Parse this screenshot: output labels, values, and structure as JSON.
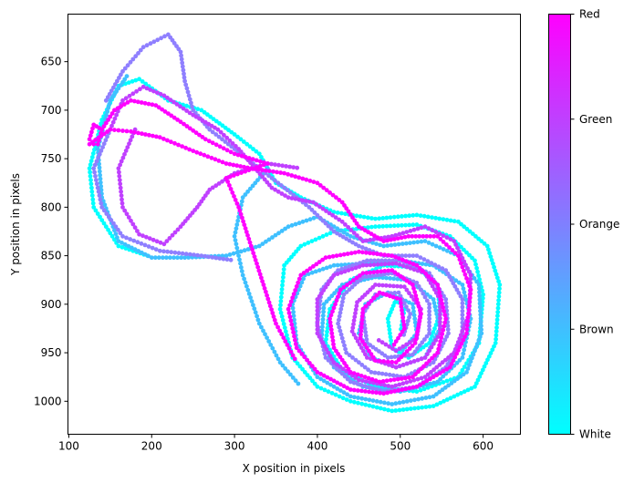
{
  "chart_data": {
    "type": "scatter",
    "title": "",
    "xlabel": "X position in pixels",
    "ylabel": "Y position in pixels",
    "xlim": [
      99,
      645
    ],
    "ylim": [
      1034,
      601
    ],
    "y_inverted": true,
    "grid": false,
    "xticks": [
      100,
      200,
      300,
      400,
      500,
      600
    ],
    "yticks": [
      650,
      700,
      750,
      800,
      850,
      900,
      950,
      1000
    ],
    "colormap": "cool",
    "colorbar": {
      "position": "right",
      "ticks": [
        "White",
        "Brown",
        "Orange",
        "Green",
        "Red"
      ],
      "colors": {
        "low": "#00ffff",
        "high": "#ff00ff"
      }
    },
    "series": [
      {
        "name": "White",
        "color": "#00ffff",
        "points": [
          [
            195,
            850
          ],
          [
            160,
            840
          ],
          [
            130,
            800
          ],
          [
            125,
            760
          ],
          [
            140,
            710
          ],
          [
            160,
            675
          ],
          [
            185,
            668
          ],
          [
            220,
            690
          ],
          [
            260,
            700
          ],
          [
            300,
            725
          ],
          [
            330,
            745
          ],
          [
            350,
            775
          ],
          [
            380,
            790
          ],
          [
            420,
            805
          ],
          [
            470,
            812
          ],
          [
            520,
            808
          ],
          [
            570,
            815
          ],
          [
            605,
            840
          ],
          [
            620,
            880
          ],
          [
            615,
            940
          ],
          [
            590,
            985
          ],
          [
            540,
            1005
          ],
          [
            490,
            1010
          ],
          [
            440,
            1000
          ],
          [
            400,
            985
          ],
          [
            370,
            955
          ],
          [
            355,
            905
          ],
          [
            360,
            860
          ],
          [
            380,
            840
          ],
          [
            420,
            825
          ],
          [
            470,
            820
          ],
          [
            520,
            818
          ],
          [
            560,
            830
          ],
          [
            590,
            855
          ],
          [
            600,
            890
          ],
          [
            595,
            940
          ],
          [
            570,
            975
          ],
          [
            520,
            990
          ],
          [
            470,
            985
          ],
          [
            430,
            968
          ],
          [
            410,
            940
          ],
          [
            415,
            905
          ],
          [
            440,
            875
          ],
          [
            480,
            860
          ],
          [
            520,
            862
          ],
          [
            545,
            880
          ],
          [
            548,
            910
          ],
          [
            535,
            940
          ],
          [
            510,
            955
          ],
          [
            490,
            945
          ],
          [
            485,
            915
          ],
          [
            495,
            895
          ],
          [
            505,
            905
          ],
          [
            500,
            930
          ]
        ]
      },
      {
        "name": "Brown",
        "color": "#3fc0ff",
        "points": [
          [
            170,
            665
          ],
          [
            150,
            690
          ],
          [
            135,
            740
          ],
          [
            140,
            790
          ],
          [
            160,
            835
          ],
          [
            200,
            852
          ],
          [
            240,
            852
          ],
          [
            290,
            850
          ],
          [
            330,
            840
          ],
          [
            365,
            820
          ],
          [
            400,
            810
          ],
          [
            440,
            830
          ],
          [
            480,
            840
          ],
          [
            530,
            835
          ],
          [
            570,
            850
          ],
          [
            595,
            880
          ],
          [
            598,
            930
          ],
          [
            580,
            970
          ],
          [
            540,
            995
          ],
          [
            490,
            1003
          ],
          [
            440,
            995
          ],
          [
            400,
            975
          ],
          [
            375,
            940
          ],
          [
            370,
            900
          ],
          [
            385,
            870
          ],
          [
            420,
            860
          ],
          [
            460,
            858
          ],
          [
            500,
            855
          ],
          [
            540,
            860
          ],
          [
            575,
            880
          ],
          [
            585,
            915
          ],
          [
            575,
            955
          ],
          [
            545,
            980
          ],
          [
            500,
            990
          ],
          [
            455,
            985
          ],
          [
            420,
            965
          ],
          [
            405,
            935
          ],
          [
            408,
            900
          ],
          [
            430,
            880
          ],
          [
            470,
            872
          ],
          [
            510,
            875
          ],
          [
            540,
            895
          ],
          [
            548,
            925
          ],
          [
            530,
            955
          ],
          [
            495,
            965
          ],
          [
            465,
            955
          ],
          [
            450,
            930
          ],
          [
            458,
            900
          ],
          [
            485,
            888
          ],
          [
            515,
            900
          ],
          [
            520,
            930
          ],
          [
            500,
            950
          ],
          [
            340,
            760
          ],
          [
            310,
            790
          ],
          [
            300,
            830
          ],
          [
            310,
            870
          ],
          [
            330,
            920
          ],
          [
            355,
            960
          ],
          [
            380,
            985
          ]
        ]
      },
      {
        "name": "Orange",
        "color": "#8f7fff",
        "points": [
          [
            145,
            690
          ],
          [
            165,
            660
          ],
          [
            190,
            635
          ],
          [
            220,
            622
          ],
          [
            235,
            640
          ],
          [
            240,
            670
          ],
          [
            250,
            700
          ],
          [
            270,
            720
          ],
          [
            300,
            740
          ],
          [
            330,
            760
          ],
          [
            360,
            780
          ],
          [
            390,
            800
          ],
          [
            420,
            825
          ],
          [
            450,
            840
          ],
          [
            480,
            850
          ],
          [
            520,
            850
          ],
          [
            555,
            865
          ],
          [
            575,
            895
          ],
          [
            575,
            935
          ],
          [
            555,
            965
          ],
          [
            520,
            985
          ],
          [
            480,
            990
          ],
          [
            440,
            980
          ],
          [
            410,
            955
          ],
          [
            400,
            920
          ],
          [
            405,
            885
          ],
          [
            425,
            865
          ],
          [
            460,
            855
          ],
          [
            500,
            855
          ],
          [
            535,
            868
          ],
          [
            555,
            895
          ],
          [
            558,
            930
          ],
          [
            540,
            960
          ],
          [
            505,
            975
          ],
          [
            465,
            970
          ],
          [
            435,
            950
          ],
          [
            425,
            920
          ],
          [
            432,
            890
          ],
          [
            455,
            872
          ],
          [
            490,
            868
          ],
          [
            520,
            878
          ],
          [
            535,
            900
          ],
          [
            535,
            930
          ],
          [
            515,
            952
          ],
          [
            485,
            955
          ],
          [
            460,
            940
          ],
          [
            455,
            910
          ],
          [
            470,
            890
          ],
          [
            498,
            888
          ],
          [
            512,
            910
          ],
          [
            503,
            935
          ],
          [
            150,
            720
          ],
          [
            130,
            760
          ],
          [
            140,
            800
          ],
          [
            165,
            830
          ],
          [
            210,
            845
          ],
          [
            260,
            850
          ],
          [
            300,
            855
          ]
        ]
      },
      {
        "name": "Green",
        "color": "#c040ff",
        "points": [
          [
            150,
            720
          ],
          [
            165,
            690
          ],
          [
            190,
            676
          ],
          [
            215,
            685
          ],
          [
            250,
            705
          ],
          [
            280,
            720
          ],
          [
            305,
            740
          ],
          [
            325,
            760
          ],
          [
            345,
            780
          ],
          [
            365,
            790
          ],
          [
            395,
            795
          ],
          [
            430,
            815
          ],
          [
            455,
            835
          ],
          [
            490,
            830
          ],
          [
            530,
            820
          ],
          [
            565,
            835
          ],
          [
            585,
            870
          ],
          [
            583,
            910
          ],
          [
            565,
            950
          ],
          [
            530,
            975
          ],
          [
            490,
            985
          ],
          [
            450,
            978
          ],
          [
            420,
            960
          ],
          [
            400,
            930
          ],
          [
            400,
            895
          ],
          [
            420,
            870
          ],
          [
            455,
            860
          ],
          [
            495,
            858
          ],
          [
            530,
            868
          ],
          [
            548,
            895
          ],
          [
            548,
            930
          ],
          [
            530,
            955
          ],
          [
            495,
            965
          ],
          [
            460,
            955
          ],
          [
            442,
            928
          ],
          [
            448,
            898
          ],
          [
            470,
            880
          ],
          [
            505,
            882
          ],
          [
            525,
            905
          ],
          [
            520,
            935
          ],
          [
            495,
            948
          ],
          [
            470,
            935
          ],
          [
            180,
            720
          ],
          [
            160,
            760
          ],
          [
            165,
            800
          ],
          [
            185,
            828
          ],
          [
            215,
            838
          ],
          [
            235,
            820
          ],
          [
            255,
            800
          ],
          [
            270,
            782
          ],
          [
            300,
            765
          ],
          [
            340,
            755
          ],
          [
            380,
            760
          ]
        ]
      },
      {
        "name": "Red",
        "color": "#ff00ff",
        "points": [
          [
            125,
            730
          ],
          [
            130,
            715
          ],
          [
            140,
            720
          ],
          [
            135,
            735
          ],
          [
            125,
            735
          ],
          [
            150,
            720
          ],
          [
            175,
            722
          ],
          [
            210,
            728
          ],
          [
            250,
            742
          ],
          [
            290,
            755
          ],
          [
            320,
            760
          ],
          [
            360,
            765
          ],
          [
            400,
            775
          ],
          [
            430,
            795
          ],
          [
            450,
            820
          ],
          [
            480,
            835
          ],
          [
            510,
            830
          ],
          [
            545,
            830
          ],
          [
            570,
            850
          ],
          [
            585,
            885
          ],
          [
            580,
            930
          ],
          [
            560,
            965
          ],
          [
            520,
            985
          ],
          [
            480,
            992
          ],
          [
            440,
            988
          ],
          [
            400,
            970
          ],
          [
            375,
            945
          ],
          [
            365,
            905
          ],
          [
            380,
            870
          ],
          [
            410,
            852
          ],
          [
            450,
            846
          ],
          [
            490,
            850
          ],
          [
            520,
            860
          ],
          [
            545,
            880
          ],
          [
            555,
            915
          ],
          [
            545,
            950
          ],
          [
            515,
            975
          ],
          [
            475,
            980
          ],
          [
            440,
            970
          ],
          [
            420,
            945
          ],
          [
            415,
            915
          ],
          [
            428,
            885
          ],
          [
            455,
            868
          ],
          [
            490,
            865
          ],
          [
            515,
            880
          ],
          [
            525,
            910
          ],
          [
            518,
            940
          ],
          [
            495,
            960
          ],
          [
            470,
            958
          ],
          [
            452,
            935
          ],
          [
            455,
            905
          ],
          [
            475,
            888
          ],
          [
            500,
            895
          ],
          [
            505,
            925
          ],
          [
            490,
            945
          ],
          [
            140,
            720
          ],
          [
            155,
            700
          ],
          [
            175,
            690
          ],
          [
            205,
            695
          ],
          [
            235,
            712
          ],
          [
            265,
            730
          ],
          [
            300,
            745
          ],
          [
            340,
            755
          ],
          [
            290,
            770
          ],
          [
            305,
            800
          ],
          [
            320,
            840
          ],
          [
            335,
            880
          ],
          [
            350,
            920
          ],
          [
            375,
            960
          ]
        ]
      }
    ]
  }
}
